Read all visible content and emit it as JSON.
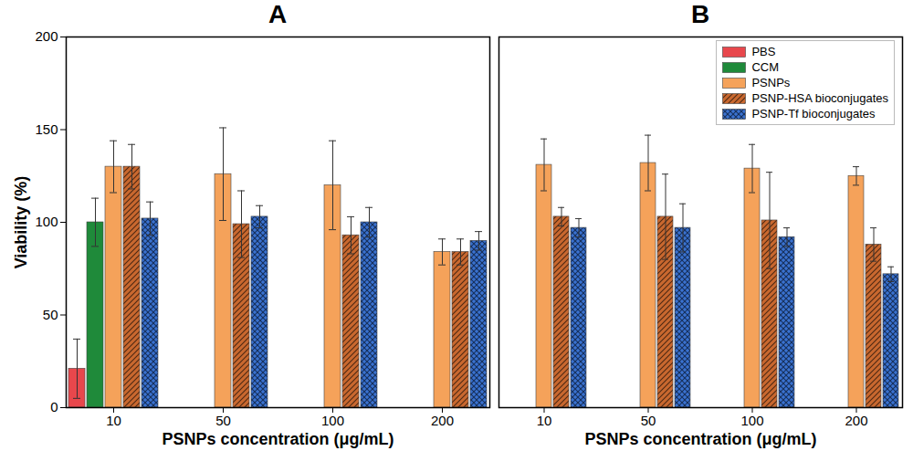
{
  "chart_data": [
    {
      "type": "bar",
      "title": "A",
      "x_label": "PSNPs concentration (μg/mL)",
      "y_label": "Viability (%)",
      "categories": [
        "10",
        "50",
        "100",
        "200"
      ],
      "ylim": [
        0,
        200
      ],
      "yticks": [
        0,
        50,
        100,
        150,
        200
      ],
      "series": [
        {
          "name": "PBS",
          "color": "#e8474c",
          "values": [
            21,
            null,
            null,
            null
          ],
          "errors": [
            16,
            null,
            null,
            null
          ]
        },
        {
          "name": "CCM",
          "color": "#1f8a3a",
          "values": [
            100,
            null,
            null,
            null
          ],
          "errors": [
            13,
            null,
            null,
            null
          ]
        },
        {
          "name": "PSNPs",
          "color": "#f5a25a",
          "values": [
            130,
            126,
            120,
            84
          ],
          "errors": [
            14,
            25,
            24,
            7
          ]
        },
        {
          "name": "PSNP-HSA bioconjugates",
          "color": "#c9682f",
          "values": [
            130,
            99,
            93,
            84
          ],
          "errors": [
            12,
            18,
            10,
            7
          ]
        },
        {
          "name": "PSNP-Tf bioconjugates",
          "color": "#3a72d0",
          "values": [
            102,
            103,
            100,
            90
          ],
          "errors": [
            9,
            6,
            8,
            5
          ]
        }
      ]
    },
    {
      "type": "bar",
      "title": "B",
      "x_label": "PSNPs concentration (μg/mL)",
      "categories": [
        "10",
        "50",
        "100",
        "200"
      ],
      "ylim": [
        0,
        200
      ],
      "tick_labels": "x",
      "legend": "top-right",
      "series": [
        {
          "name": "PBS",
          "color": "#e8474c",
          "values": [
            null,
            null,
            null,
            null
          ],
          "errors": [
            null,
            null,
            null,
            null
          ]
        },
        {
          "name": "CCM",
          "color": "#1f8a3a",
          "values": [
            null,
            null,
            null,
            null
          ],
          "errors": [
            null,
            null,
            null,
            null
          ]
        },
        {
          "name": "PSNPs",
          "color": "#f5a25a",
          "values": [
            131,
            132,
            129,
            125
          ],
          "errors": [
            14,
            15,
            13,
            5
          ]
        },
        {
          "name": "PSNP-HSA bioconjugates",
          "color": "#c9682f",
          "values": [
            103,
            103,
            101,
            88
          ],
          "errors": [
            5,
            23,
            26,
            9
          ]
        },
        {
          "name": "PSNP-Tf bioconjugates",
          "color": "#3a72d0",
          "values": [
            97,
            97,
            92,
            72
          ],
          "errors": [
            5,
            13,
            5,
            4
          ]
        }
      ]
    }
  ]
}
